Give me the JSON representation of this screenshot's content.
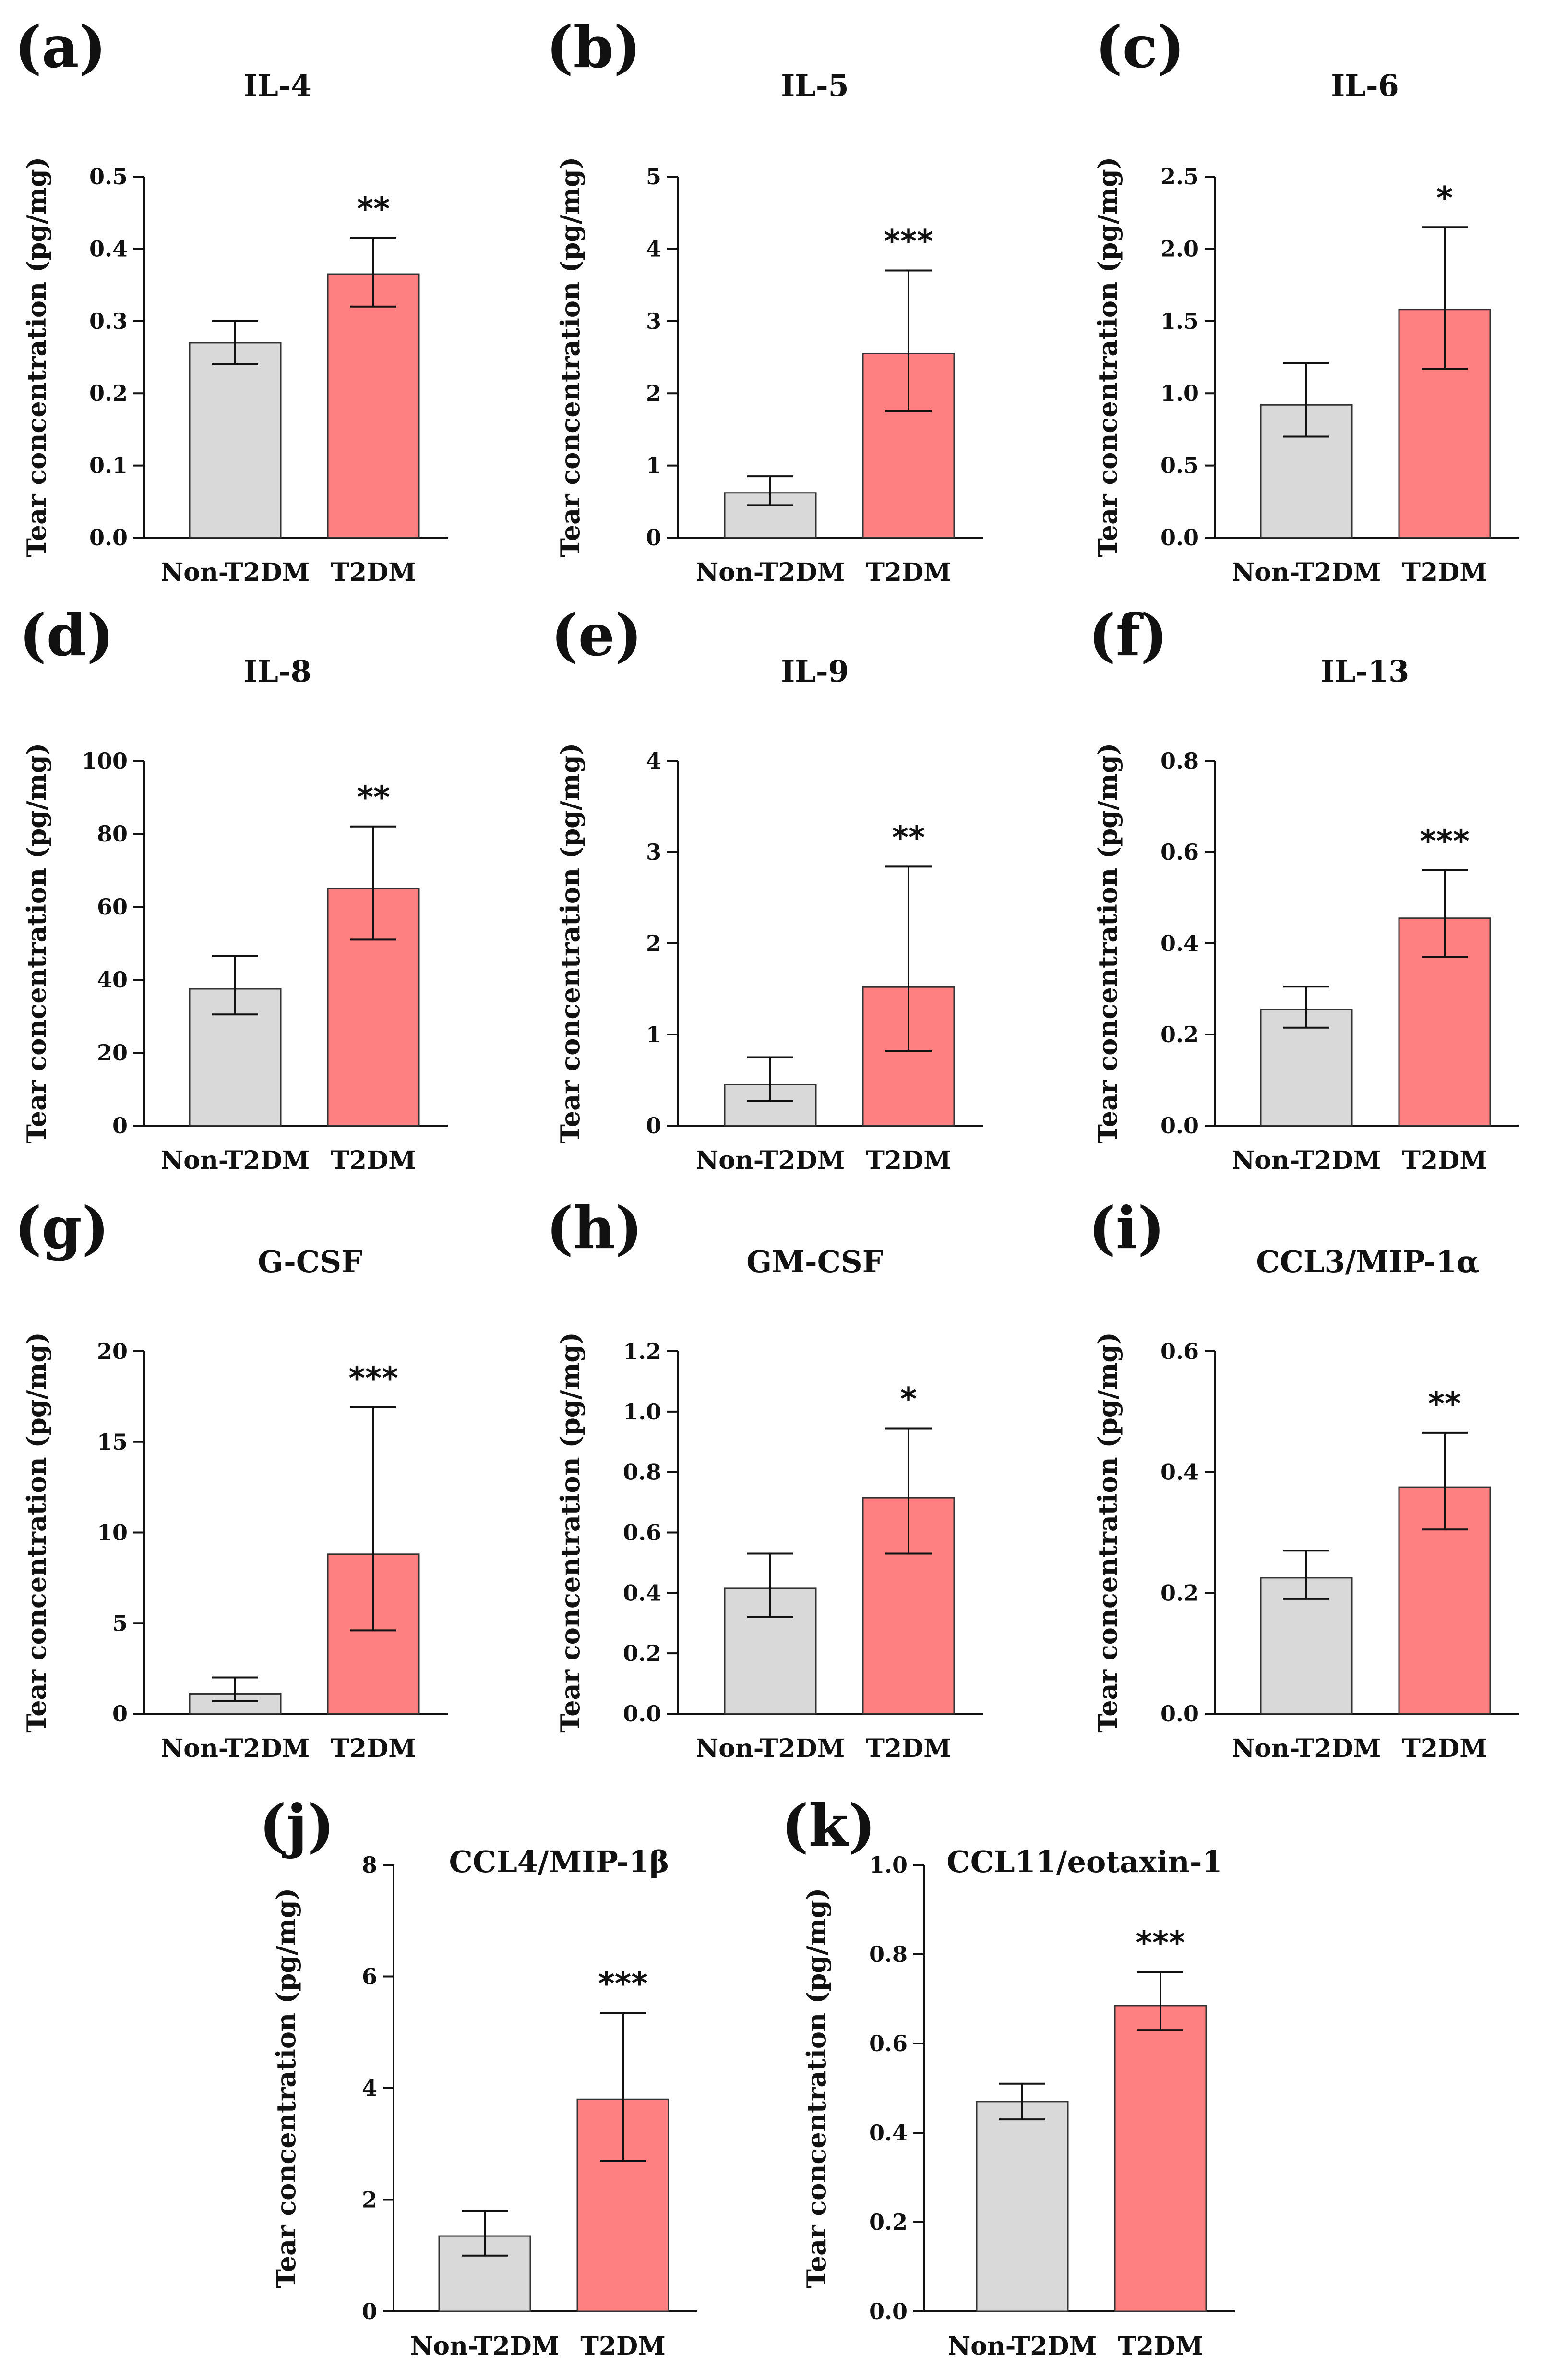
{
  "figure": {
    "background": "#ffffff"
  },
  "chart_data": [
    {
      "type": "bar",
      "panel_letter": "(a)",
      "title": "IL-4",
      "ylabel": "Tear concentration (pg/mg)",
      "xlabel": "",
      "categories": [
        "Non-T2DM",
        "T2DM"
      ],
      "values": [
        0.27,
        0.365
      ],
      "error_low": [
        0.24,
        0.32
      ],
      "error_high": [
        0.3,
        0.415
      ],
      "colors": [
        "#d9d9d9",
        "#ff8080"
      ],
      "significance": "**",
      "ylim": [
        0,
        0.5
      ],
      "yticks": [
        0,
        0.1,
        0.2,
        0.3,
        0.4,
        0.5
      ],
      "ytick_labels": [
        "0.0",
        "0.1",
        "0.2",
        "0.3",
        "0.4",
        "0.5"
      ]
    },
    {
      "type": "bar",
      "panel_letter": "(b)",
      "title": "IL-5",
      "ylabel": "Tear concentration (pg/mg)",
      "xlabel": "",
      "categories": [
        "Non-T2DM",
        "T2DM"
      ],
      "values": [
        0.62,
        2.55
      ],
      "error_low": [
        0.45,
        1.75
      ],
      "error_high": [
        0.85,
        3.7
      ],
      "colors": [
        "#d9d9d9",
        "#ff8080"
      ],
      "significance": "***",
      "ylim": [
        0,
        5
      ],
      "yticks": [
        0,
        1,
        2,
        3,
        4,
        5
      ],
      "ytick_labels": [
        "0",
        "1",
        "2",
        "3",
        "4",
        "5"
      ]
    },
    {
      "type": "bar",
      "panel_letter": "(c)",
      "title": "IL-6",
      "ylabel": "Tear concentration (pg/mg)",
      "xlabel": "",
      "categories": [
        "Non-T2DM",
        "T2DM"
      ],
      "values": [
        0.92,
        1.58
      ],
      "error_low": [
        0.7,
        1.17
      ],
      "error_high": [
        1.21,
        2.15
      ],
      "colors": [
        "#d9d9d9",
        "#ff8080"
      ],
      "significance": "*",
      "ylim": [
        0,
        2.5
      ],
      "yticks": [
        0,
        0.5,
        1.0,
        1.5,
        2.0,
        2.5
      ],
      "ytick_labels": [
        "0.0",
        "0.5",
        "1.0",
        "1.5",
        "2.0",
        "2.5"
      ]
    },
    {
      "type": "bar",
      "panel_letter": "(d)",
      "title": "IL-8",
      "ylabel": "Tear concentration (pg/mg)",
      "xlabel": "",
      "categories": [
        "Non-T2DM",
        "T2DM"
      ],
      "values": [
        37.5,
        65
      ],
      "error_low": [
        30.5,
        51
      ],
      "error_high": [
        46.5,
        82
      ],
      "colors": [
        "#d9d9d9",
        "#ff8080"
      ],
      "significance": "**",
      "ylim": [
        0,
        100
      ],
      "yticks": [
        0,
        20,
        40,
        60,
        80,
        100
      ],
      "ytick_labels": [
        "0",
        "20",
        "40",
        "60",
        "80",
        "100"
      ]
    },
    {
      "type": "bar",
      "panel_letter": "(e)",
      "title": "IL-9",
      "ylabel": "Tear concentration (pg/mg)",
      "xlabel": "",
      "categories": [
        "Non-T2DM",
        "T2DM"
      ],
      "values": [
        0.45,
        1.52
      ],
      "error_low": [
        0.27,
        0.82
      ],
      "error_high": [
        0.75,
        2.84
      ],
      "colors": [
        "#d9d9d9",
        "#ff8080"
      ],
      "significance": "**",
      "ylim": [
        0,
        4
      ],
      "yticks": [
        0,
        1,
        2,
        3,
        4
      ],
      "ytick_labels": [
        "0",
        "1",
        "2",
        "3",
        "4"
      ]
    },
    {
      "type": "bar",
      "panel_letter": "(f)",
      "title": "IL-13",
      "ylabel": "Tear concentration (pg/mg)",
      "xlabel": "",
      "categories": [
        "Non-T2DM",
        "T2DM"
      ],
      "values": [
        0.255,
        0.455
      ],
      "error_low": [
        0.215,
        0.37
      ],
      "error_high": [
        0.305,
        0.56
      ],
      "colors": [
        "#d9d9d9",
        "#ff8080"
      ],
      "significance": "***",
      "ylim": [
        0,
        0.8
      ],
      "yticks": [
        0,
        0.2,
        0.4,
        0.6,
        0.8
      ],
      "ytick_labels": [
        "0.0",
        "0.2",
        "0.4",
        "0.6",
        "0.8"
      ]
    },
    {
      "type": "bar",
      "panel_letter": "(g)",
      "title": "G-CSF",
      "ylabel": "Tear concentration (pg/mg)",
      "xlabel": "",
      "categories": [
        "Non-T2DM",
        "T2DM"
      ],
      "values": [
        1.1,
        8.8
      ],
      "error_low": [
        0.7,
        4.6
      ],
      "error_high": [
        2.0,
        16.9
      ],
      "colors": [
        "#d9d9d9",
        "#ff8080"
      ],
      "significance": "***",
      "ylim": [
        0,
        20
      ],
      "yticks": [
        0,
        5,
        10,
        15,
        20
      ],
      "ytick_labels": [
        "0",
        "5",
        "10",
        "15",
        "20"
      ]
    },
    {
      "type": "bar",
      "panel_letter": "(h)",
      "title": "GM-CSF",
      "ylabel": "Tear concentration (pg/mg)",
      "xlabel": "",
      "categories": [
        "Non-T2DM",
        "T2DM"
      ],
      "values": [
        0.415,
        0.715
      ],
      "error_low": [
        0.32,
        0.53
      ],
      "error_high": [
        0.53,
        0.945
      ],
      "colors": [
        "#d9d9d9",
        "#ff8080"
      ],
      "significance": "*",
      "ylim": [
        0,
        1.2
      ],
      "yticks": [
        0,
        0.2,
        0.4,
        0.6,
        0.8,
        1.0,
        1.2
      ],
      "ytick_labels": [
        "0.0",
        "0.2",
        "0.4",
        "0.6",
        "0.8",
        "1.0",
        "1.2"
      ]
    },
    {
      "type": "bar",
      "panel_letter": "(i)",
      "title": "CCL3/MIP-1α",
      "ylabel": "Tear concentration (pg/mg)",
      "xlabel": "",
      "categories": [
        "Non-T2DM",
        "T2DM"
      ],
      "values": [
        0.225,
        0.375
      ],
      "error_low": [
        0.19,
        0.305
      ],
      "error_high": [
        0.27,
        0.465
      ],
      "colors": [
        "#d9d9d9",
        "#ff8080"
      ],
      "significance": "**",
      "ylim": [
        0,
        0.6
      ],
      "yticks": [
        0,
        0.2,
        0.4,
        0.6
      ],
      "ytick_labels": [
        "0.0",
        "0.2",
        "0.4",
        "0.6"
      ]
    },
    {
      "type": "bar",
      "panel_letter": "(j)",
      "title": "CCL4/MIP-1β",
      "ylabel": "Tear concentration (pg/mg)",
      "xlabel": "",
      "categories": [
        "Non-T2DM",
        "T2DM"
      ],
      "values": [
        1.35,
        3.8
      ],
      "error_low": [
        1.0,
        2.7
      ],
      "error_high": [
        1.8,
        5.35
      ],
      "colors": [
        "#d9d9d9",
        "#ff8080"
      ],
      "significance": "***",
      "ylim": [
        0,
        8
      ],
      "yticks": [
        0,
        2,
        4,
        6,
        8
      ],
      "ytick_labels": [
        "0",
        "2",
        "4",
        "6",
        "8"
      ]
    },
    {
      "type": "bar",
      "panel_letter": "(k)",
      "title": "CCL11/eotaxin-1",
      "ylabel": "Tear concentration (pg/mg)",
      "xlabel": "",
      "categories": [
        "Non-T2DM",
        "T2DM"
      ],
      "values": [
        0.47,
        0.685
      ],
      "error_low": [
        0.43,
        0.63
      ],
      "error_high": [
        0.51,
        0.76
      ],
      "colors": [
        "#d9d9d9",
        "#ff8080"
      ],
      "significance": "***",
      "ylim": [
        0,
        1.0
      ],
      "yticks": [
        0,
        0.2,
        0.4,
        0.6,
        0.8,
        1.0
      ],
      "ytick_labels": [
        "0.0",
        "0.2",
        "0.4",
        "0.6",
        "0.8",
        "1.0"
      ]
    }
  ]
}
